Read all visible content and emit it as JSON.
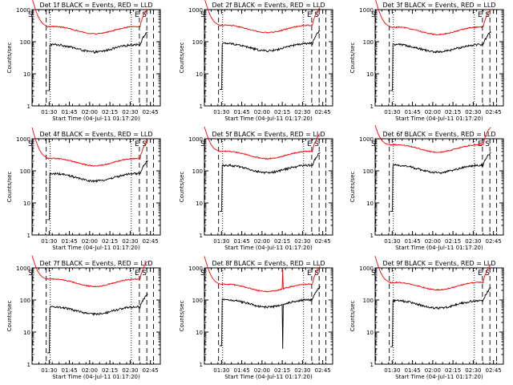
{
  "chart_data": {
    "type": "line",
    "layout": "grid-3x3",
    "yscale": "log",
    "ylim": [
      1,
      1000
    ],
    "yticks": [
      "1",
      "10",
      "100",
      "1000"
    ],
    "ylabel": "Counts/sec",
    "xlabel": "Start Time (04-Jul-11 01:17:20)",
    "xticks": [
      "01:30",
      "01:45",
      "02:00",
      "02:15",
      "02:30",
      "02:45"
    ],
    "xlim_minutes_after_start": [
      0,
      95
    ],
    "series_colors": {
      "events": "#000000",
      "lld": "#ff0000"
    },
    "panels": [
      {
        "title": "Det 1f BLACK = Events, RED = LLD",
        "markers": [
          {
            "label": "S",
            "t": 0.5,
            "style": "dashed"
          },
          {
            "label": "",
            "t": 10.5,
            "style": "dashed"
          },
          {
            "label": "",
            "t": 13.5,
            "style": "dotted"
          },
          {
            "label": "",
            "t": 73.5,
            "style": "dotted"
          },
          {
            "label": "E",
            "t": 79.5,
            "style": "dashed"
          },
          {
            "label": "S",
            "t": 85.0,
            "style": "dashed"
          },
          {
            "label": "",
            "t": 90.0,
            "style": "dashed"
          }
        ],
        "lld_level": 220,
        "events_level": 60,
        "spikes": []
      },
      {
        "title": "Det 2f BLACK = Events, RED = LLD",
        "markers": [
          {
            "label": "S",
            "t": 0.5,
            "style": "dashed"
          },
          {
            "label": "",
            "t": 10.5,
            "style": "dashed"
          },
          {
            "label": "",
            "t": 13.5,
            "style": "dotted"
          },
          {
            "label": "",
            "t": 73.5,
            "style": "dotted"
          },
          {
            "label": "E",
            "t": 79.5,
            "style": "dashed"
          },
          {
            "label": "S",
            "t": 85.0,
            "style": "dashed"
          },
          {
            "label": "",
            "t": 90.0,
            "style": "dashed"
          }
        ],
        "lld_level": 240,
        "events_level": 65,
        "spikes": []
      },
      {
        "title": "Det 3f BLACK = Events, RED = LLD",
        "markers": [
          {
            "label": "S",
            "t": 0.5,
            "style": "dashed"
          },
          {
            "label": "",
            "t": 10.5,
            "style": "dashed"
          },
          {
            "label": "",
            "t": 13.5,
            "style": "dotted"
          },
          {
            "label": "",
            "t": 73.5,
            "style": "dotted"
          },
          {
            "label": "E",
            "t": 79.5,
            "style": "dashed"
          },
          {
            "label": "S",
            "t": 85.0,
            "style": "dashed"
          },
          {
            "label": "",
            "t": 90.0,
            "style": "dashed"
          }
        ],
        "lld_level": 210,
        "events_level": 60,
        "spikes": []
      },
      {
        "title": "Det 4f BLACK = Events, RED = LLD",
        "markers": [
          {
            "label": "S",
            "t": 0.5,
            "style": "dashed"
          },
          {
            "label": "",
            "t": 10.5,
            "style": "dashed"
          },
          {
            "label": "",
            "t": 13.5,
            "style": "dotted"
          },
          {
            "label": "",
            "t": 73.5,
            "style": "dotted"
          },
          {
            "label": "E",
            "t": 79.5,
            "style": "dashed"
          },
          {
            "label": "S",
            "t": 85.0,
            "style": "dashed"
          },
          {
            "label": "",
            "t": 90.0,
            "style": "dashed"
          }
        ],
        "lld_level": 180,
        "events_level": 60,
        "spikes": []
      },
      {
        "title": "Det 5f BLACK = Events, RED = LLD",
        "markers": [
          {
            "label": "S",
            "t": 0.5,
            "style": "dashed"
          },
          {
            "label": "",
            "t": 10.5,
            "style": "dashed"
          },
          {
            "label": "",
            "t": 13.5,
            "style": "dotted"
          },
          {
            "label": "",
            "t": 73.5,
            "style": "dotted"
          },
          {
            "label": "E",
            "t": 79.5,
            "style": "dashed"
          },
          {
            "label": "S",
            "t": 85.0,
            "style": "dashed"
          },
          {
            "label": "",
            "t": 90.0,
            "style": "dashed"
          }
        ],
        "lld_level": 300,
        "events_level": 110,
        "spikes": []
      },
      {
        "title": "Det 6f BLACK = Events, RED = LLD",
        "markers": [
          {
            "label": "S",
            "t": 0.5,
            "style": "dashed"
          },
          {
            "label": "",
            "t": 10.5,
            "style": "dashed"
          },
          {
            "label": "",
            "t": 13.5,
            "style": "dotted"
          },
          {
            "label": "",
            "t": 73.5,
            "style": "dotted"
          },
          {
            "label": "E",
            "t": 79.5,
            "style": "dashed"
          },
          {
            "label": "S",
            "t": 85.0,
            "style": "dashed"
          },
          {
            "label": "",
            "t": 90.0,
            "style": "dashed"
          }
        ],
        "lld_level": 480,
        "events_level": 110,
        "spikes": []
      },
      {
        "title": "Det 7f BLACK = Events, RED = LLD",
        "markers": [
          {
            "label": "S",
            "t": 0.5,
            "style": "dashed"
          },
          {
            "label": "",
            "t": 10.5,
            "style": "dashed"
          },
          {
            "label": "",
            "t": 13.5,
            "style": "dotted"
          },
          {
            "label": "",
            "t": 73.5,
            "style": "dotted"
          },
          {
            "label": "E",
            "t": 79.5,
            "style": "dashed"
          },
          {
            "label": "S",
            "t": 85.0,
            "style": "dashed"
          },
          {
            "label": "",
            "t": 90.0,
            "style": "dashed"
          }
        ],
        "lld_level": 330,
        "events_level": 45,
        "spikes": []
      },
      {
        "title": "Det 8f BLACK = Events, RED = LLD",
        "markers": [
          {
            "label": "S",
            "t": 0.5,
            "style": "dashed"
          },
          {
            "label": "",
            "t": 10.5,
            "style": "dashed"
          },
          {
            "label": "",
            "t": 13.5,
            "style": "dotted"
          },
          {
            "label": "",
            "t": 73.5,
            "style": "dotted"
          },
          {
            "label": "E",
            "t": 79.5,
            "style": "dashed"
          },
          {
            "label": "S",
            "t": 85.0,
            "style": "dashed"
          },
          {
            "label": "",
            "t": 90.0,
            "style": "dashed"
          }
        ],
        "lld_level": 230,
        "events_level": 75,
        "spikes": [
          {
            "t": 58,
            "events": 3,
            "lld": 900
          }
        ]
      },
      {
        "title": "Det 9f BLACK = Events, RED = LLD",
        "markers": [
          {
            "label": "S",
            "t": 0.5,
            "style": "dashed"
          },
          {
            "label": "",
            "t": 10.5,
            "style": "dashed"
          },
          {
            "label": "",
            "t": 13.5,
            "style": "dotted"
          },
          {
            "label": "",
            "t": 73.5,
            "style": "dotted"
          },
          {
            "label": "E",
            "t": 79.5,
            "style": "dashed"
          },
          {
            "label": "S",
            "t": 85.0,
            "style": "dashed"
          },
          {
            "label": "",
            "t": 90.0,
            "style": "dashed"
          }
        ],
        "lld_level": 260,
        "events_level": 70,
        "spikes": []
      }
    ]
  }
}
